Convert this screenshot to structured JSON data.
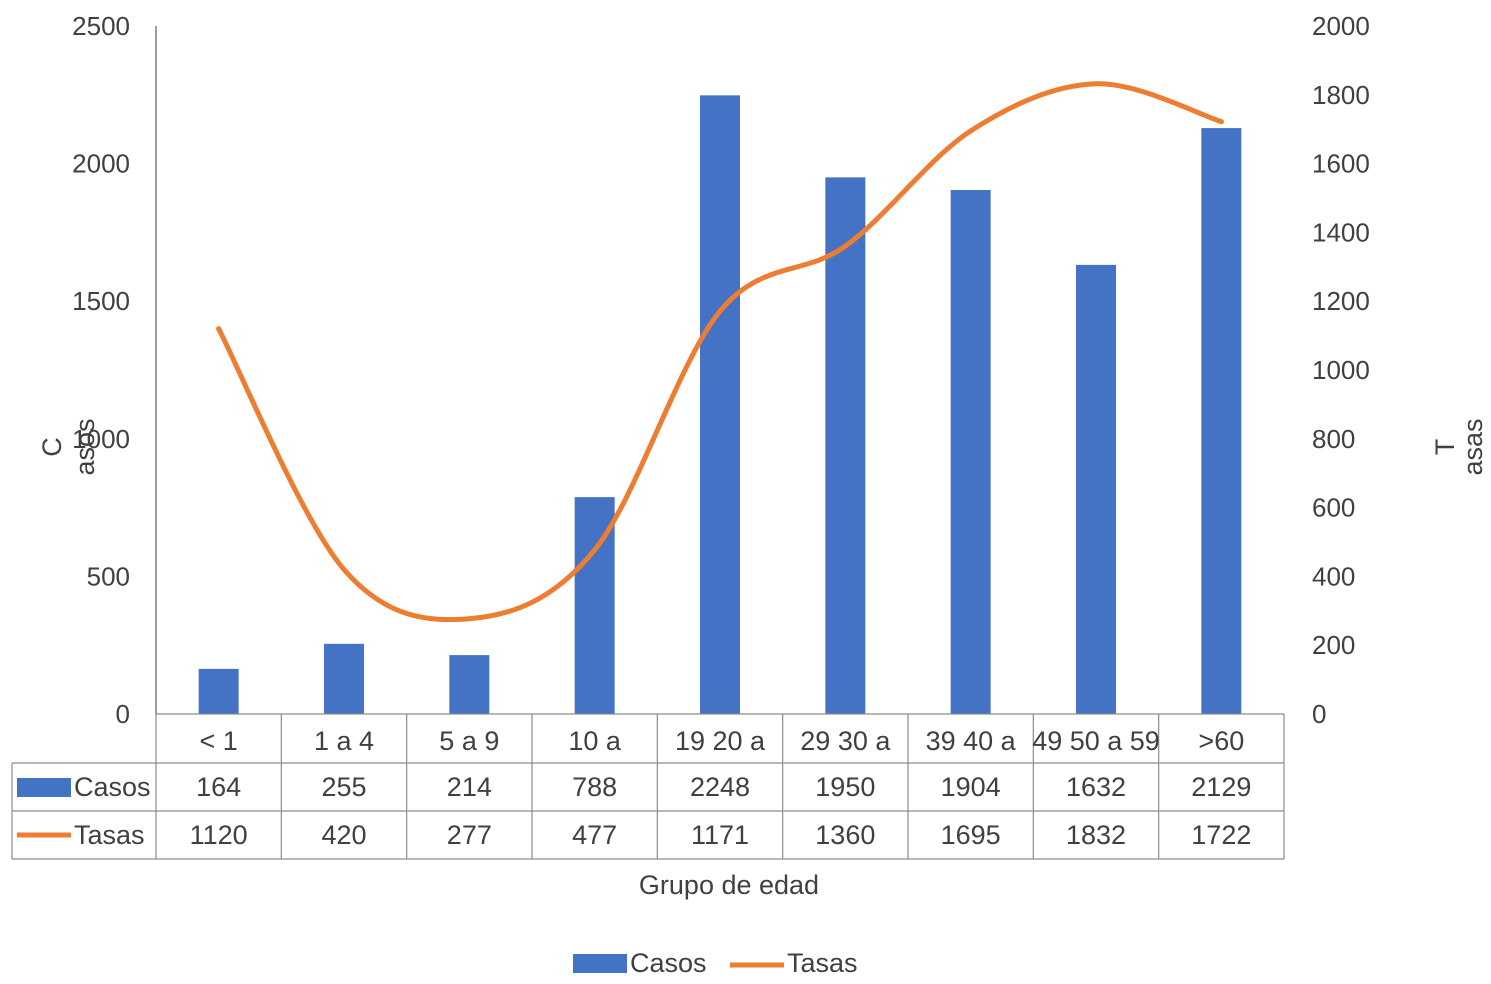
{
  "chart_data": {
    "type": "bar+line",
    "categories": [
      "< 1",
      "1 a 4",
      "5 a 9",
      "10 a 19",
      "20 a 29",
      "30 a 39",
      "40 a 49",
      "50 a 59",
      ">60"
    ],
    "category_labels": [
      "< 1",
      "1 a 4",
      "5 a 9",
      "10 a",
      "19 20 a",
      "29 30 a",
      "39 40 a",
      "49 50 a 59",
      ">60"
    ],
    "series": [
      {
        "name": "Casos",
        "type": "bar",
        "axis": "left",
        "color": "#4472C4",
        "values": [
          164,
          255,
          214,
          788,
          2248,
          1950,
          1904,
          1632,
          2129
        ]
      },
      {
        "name": "Tasas",
        "type": "line",
        "axis": "right",
        "color": "#ED7D31",
        "values": [
          1120,
          420,
          277,
          477,
          1171,
          1360,
          1695,
          1832,
          1722
        ]
      }
    ],
    "table_values": {
      "Casos": [
        "164",
        "255",
        "214",
        "788",
        "2248",
        "1950",
        "1904",
        "1632",
        "2129"
      ],
      "Tasas": [
        "1120",
        "420",
        "277",
        "477",
        "1171",
        "1360",
        "1695",
        "1832",
        "1722"
      ]
    },
    "y_left": {
      "label_part1": "C",
      "label_part2": "asos",
      "min": 0,
      "max": 2500,
      "ticks": [
        "0",
        "500",
        "1000",
        "1500",
        "2000",
        "2500"
      ]
    },
    "y_right": {
      "label_part1": "T",
      "label_part2": "asas",
      "min": 0,
      "max": 2000,
      "ticks": [
        "0",
        "200",
        "400",
        "600",
        "800",
        "1000",
        "1200",
        "1400",
        "1600",
        "1800",
        "2000"
      ]
    },
    "xlabel": "Grupo de edad",
    "legend": {
      "position": "bottom",
      "items": [
        "Casos",
        "Tasas"
      ]
    },
    "grid": false
  }
}
